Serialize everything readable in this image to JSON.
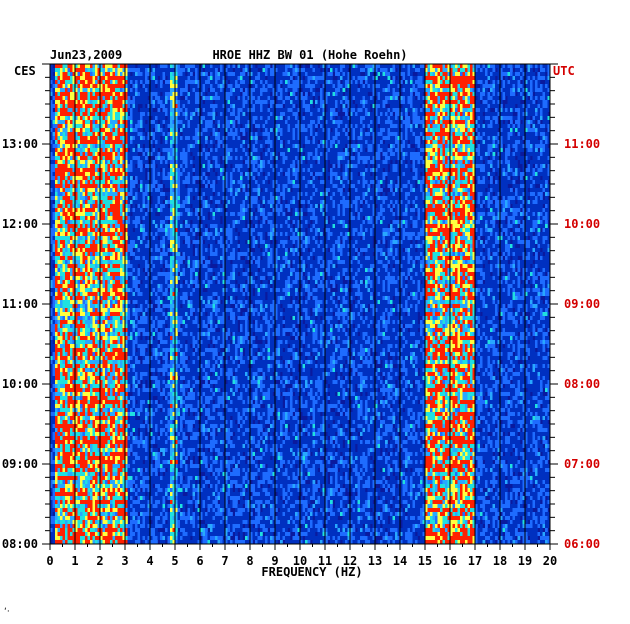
{
  "chart_data": {
    "type": "heatmap",
    "date": "Jun23,2009",
    "title": "HROE HHZ BW 01 (Hohe Roehn)",
    "xlabel": "FREQUENCY (HZ)",
    "x_ticks": [
      "0",
      "1",
      "2",
      "3",
      "4",
      "5",
      "6",
      "7",
      "8",
      "9",
      "10",
      "11",
      "12",
      "13",
      "14",
      "15",
      "16",
      "17",
      "18",
      "19",
      "20"
    ],
    "xlim": [
      0,
      20
    ],
    "left_axis_label": "CES",
    "left_ticks": [
      "08:00",
      "09:00",
      "10:00",
      "11:00",
      "12:00",
      "13:00"
    ],
    "right_axis_label": "UTC",
    "right_ticks": [
      "06:00",
      "07:00",
      "08:00",
      "09:00",
      "10:00",
      "11:00"
    ],
    "time_range_hours": [
      8.0,
      14.0
    ],
    "colors": {
      "background": "#0a1a9e",
      "low": "#001070",
      "mid": "#1e6cff",
      "high": "#20e0e0",
      "peak": "#ffff40",
      "max": "#ff2000",
      "grid": "#000000",
      "utc_text": "#d40000"
    },
    "bands": [
      {
        "from_hz": 0.2,
        "to_hz": 3.1,
        "intensity": "high"
      },
      {
        "from_hz": 4.8,
        "to_hz": 5.1,
        "intensity": "medium"
      },
      {
        "from_hz": 15.0,
        "to_hz": 17.0,
        "intensity": "high"
      }
    ],
    "footer_mark": "‘·"
  }
}
